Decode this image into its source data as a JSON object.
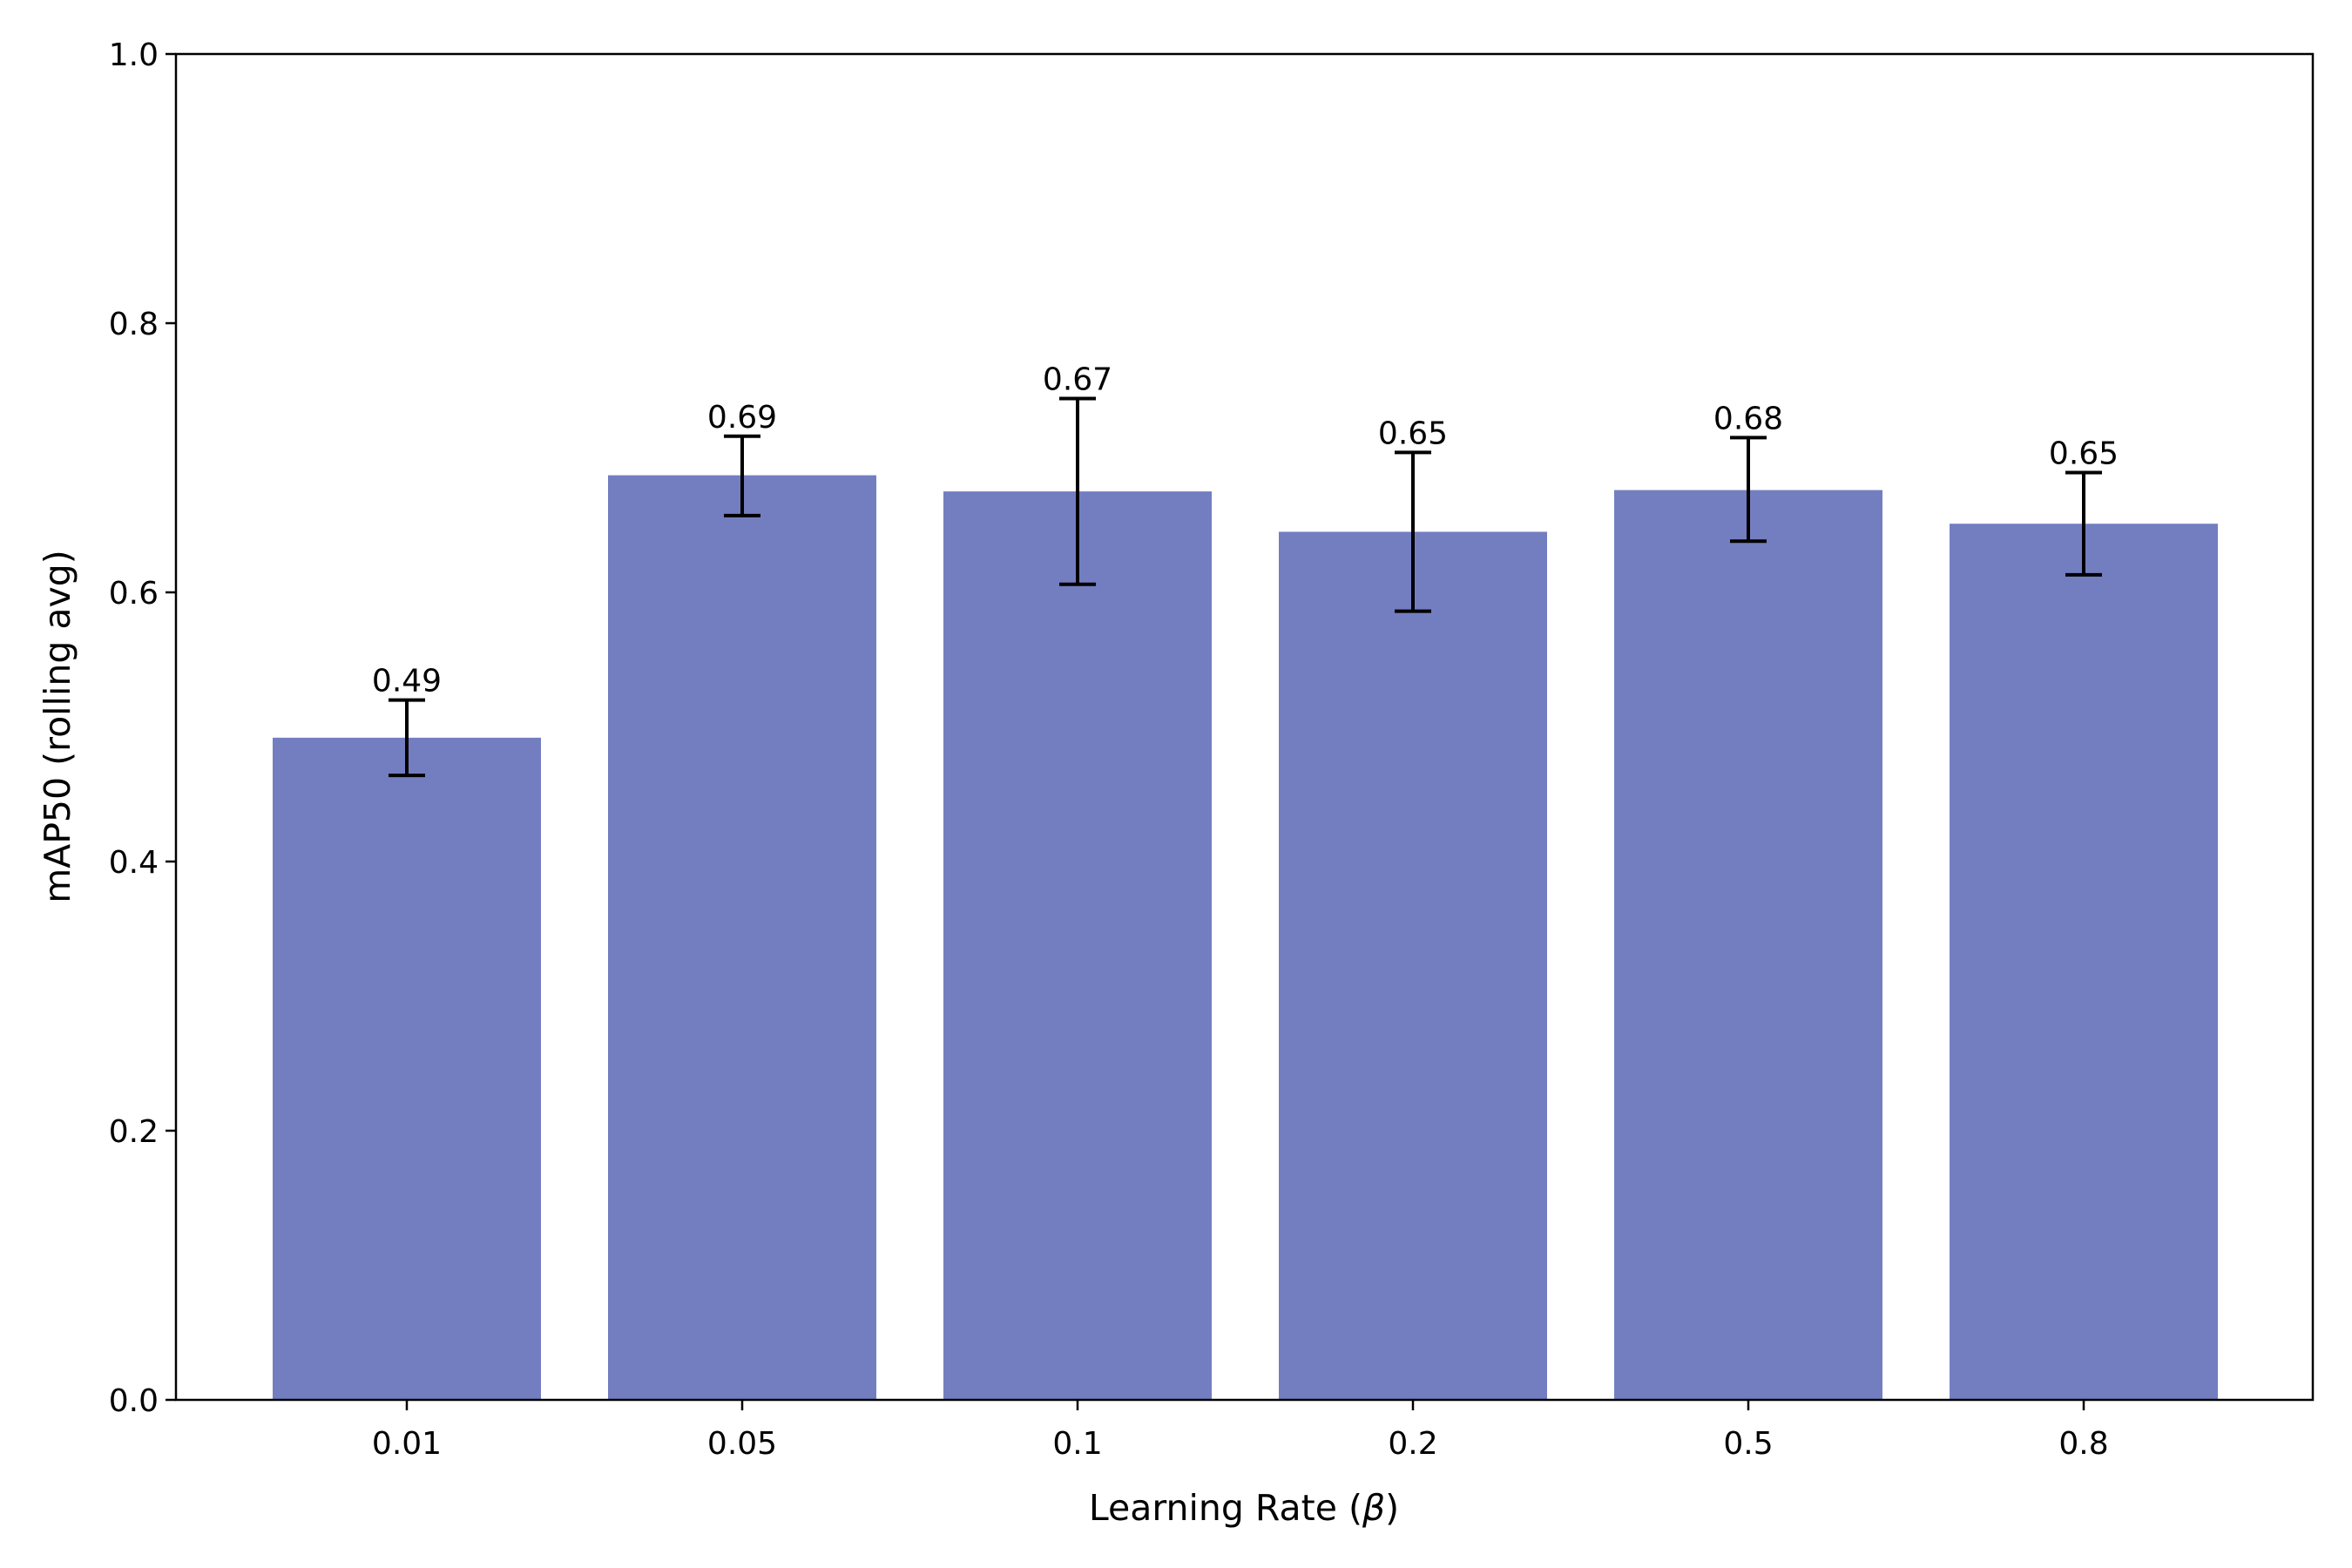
{
  "chart_data": {
    "type": "bar",
    "title": "",
    "xlabel": "Learning Rate (β)",
    "xlabel_prefix": "Learning Rate (",
    "xlabel_symbol": "β",
    "xlabel_suffix": ")",
    "ylabel": "mAP50 (rolling avg)",
    "ylim": [
      0.0,
      1.0
    ],
    "yticks": [
      "0.0",
      "0.2",
      "0.4",
      "0.6",
      "0.8",
      "1.0"
    ],
    "categories": [
      "0.01",
      "0.05",
      "0.1",
      "0.2",
      "0.5",
      "0.8"
    ],
    "values": [
      0.492,
      0.687,
      0.675,
      0.645,
      0.676,
      0.651
    ],
    "error_lower": [
      0.464,
      0.657,
      0.606,
      0.586,
      0.638,
      0.613
    ],
    "error_upper": [
      0.52,
      0.716,
      0.744,
      0.704,
      0.715,
      0.689
    ],
    "value_labels": [
      "0.49",
      "0.69",
      "0.67",
      "0.65",
      "0.68",
      "0.65"
    ],
    "grid": false,
    "legend": null,
    "bar_color": "#737EC1",
    "error_color": "#000000"
  }
}
